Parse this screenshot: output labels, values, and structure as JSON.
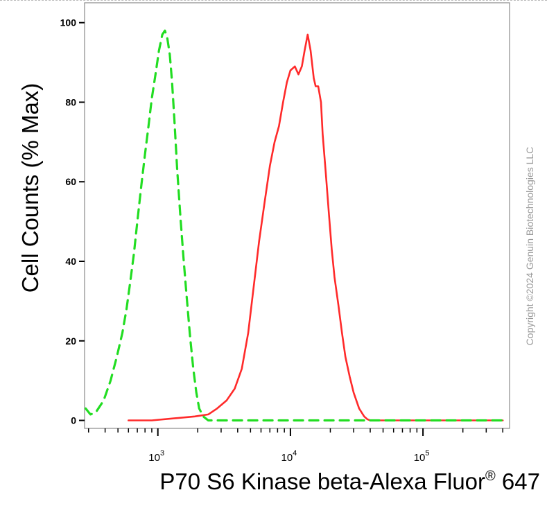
{
  "chart_data": {
    "type": "line",
    "xlabel_main": "P70 S6 Kinase beta-Alexa Fluor",
    "xlabel_reg": "®",
    "xlabel_tail": " 647",
    "ylabel": "Cell Counts (% Max)",
    "x_scale": "log",
    "xlim": [
      280,
      450000
    ],
    "ylim": [
      -2,
      105
    ],
    "y_ticks": [
      0,
      20,
      40,
      60,
      80,
      100
    ],
    "x_tick_labels": [
      {
        "base": "10",
        "exp": "3",
        "value": 1000
      },
      {
        "base": "10",
        "exp": "4",
        "value": 10000
      },
      {
        "base": "10",
        "exp": "5",
        "value": 100000
      }
    ],
    "grid": false,
    "watermark": "Copyright ©2024 Genuin Biotechnologies LLC",
    "series": [
      {
        "color": "#ff2a2a",
        "style": "solid",
        "x": [
          600,
          900,
          1300,
          1900,
          2400,
          2800,
          3300,
          3800,
          4300,
          4800,
          5300,
          5800,
          6400,
          7000,
          7600,
          8200,
          8800,
          9400,
          10000,
          10800,
          11500,
          12200,
          12800,
          13500,
          14200,
          15000,
          15500,
          16200,
          17000,
          17500,
          18500,
          19500,
          20500,
          21500,
          23000,
          24500,
          26000,
          28000,
          30000,
          33000,
          36000,
          38000,
          40000,
          50000,
          100000,
          400000
        ],
        "y": [
          0,
          0,
          0.5,
          1,
          1.5,
          3,
          5,
          8,
          13,
          22,
          34,
          45,
          55,
          64,
          70,
          74,
          80,
          85,
          88,
          89,
          87,
          89,
          93,
          97,
          93,
          86,
          84,
          84,
          80,
          72,
          62,
          52,
          43,
          36,
          29,
          22,
          16,
          11,
          7,
          3,
          1,
          0.3,
          0,
          0,
          0,
          0
        ]
      },
      {
        "color": "#22dd22",
        "style": "dashed",
        "x": [
          285,
          310,
          340,
          390,
          440,
          490,
          540,
          580,
          620,
          660,
          700,
          750,
          800,
          850,
          900,
          960,
          1020,
          1080,
          1130,
          1180,
          1230,
          1280,
          1330,
          1400,
          1480,
          1560,
          1650,
          1750,
          1850,
          1950,
          2050,
          2200,
          2400,
          2800,
          4000,
          10000,
          30000,
          100000,
          400000
        ],
        "y": [
          3,
          1.5,
          2,
          5,
          10,
          16,
          22,
          28,
          35,
          42,
          50,
          59,
          67,
          74,
          81,
          87,
          93,
          97,
          98,
          96,
          92,
          85,
          76,
          63,
          51,
          41,
          31,
          21,
          13,
          7,
          3,
          1,
          0,
          0,
          0,
          0,
          0,
          0,
          0
        ]
      }
    ]
  }
}
